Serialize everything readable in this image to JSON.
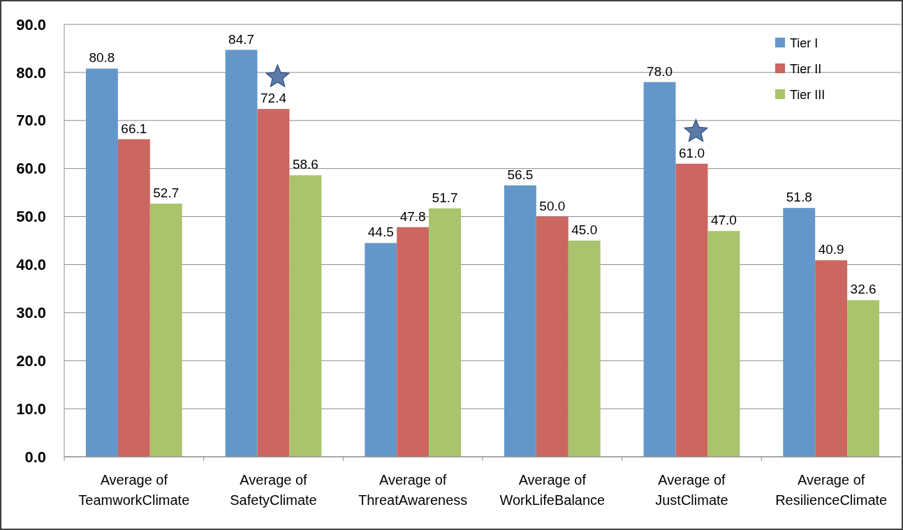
{
  "chart_data": {
    "type": "bar",
    "categories": [
      "Average of\nTeamworkClimate",
      "Average of\nSafetyClimate",
      "Average of\nThreatAwareness",
      "Average of\nWorkLifeBalance",
      "Average of\nJustClimate",
      "Average of\nResilienceClimate"
    ],
    "series": [
      {
        "name": "Tier I",
        "color": "#6497c9",
        "values": [
          80.8,
          84.7,
          44.5,
          56.5,
          78.0,
          51.8
        ],
        "value_labels": [
          "80.8",
          "84.7",
          "44.5",
          "56.5",
          "78.0",
          "51.8"
        ]
      },
      {
        "name": "Tier II",
        "color": "#cc6660",
        "values": [
          66.1,
          72.4,
          47.8,
          50.0,
          61.0,
          40.9
        ],
        "value_labels": [
          "66.1",
          "72.4",
          "47.8",
          "50.0",
          "61.0",
          "40.9"
        ]
      },
      {
        "name": "Tier III",
        "color": "#a9c46c",
        "values": [
          52.7,
          58.6,
          51.7,
          45.0,
          47.0,
          32.6
        ],
        "value_labels": [
          "52.7",
          "58.6",
          "51.7",
          "45.0",
          "47.0",
          "32.6"
        ]
      }
    ],
    "ylim": [
      0,
      90
    ],
    "yticks": [
      {
        "value": 0,
        "label": "0.0"
      },
      {
        "value": 10,
        "label": "10.0"
      },
      {
        "value": 20,
        "label": "20.0"
      },
      {
        "value": 30,
        "label": "30.0"
      },
      {
        "value": 40,
        "label": "40.0"
      },
      {
        "value": 50,
        "label": "50.0"
      },
      {
        "value": 60,
        "label": "60.0"
      },
      {
        "value": 70,
        "label": "70.0"
      },
      {
        "value": 80,
        "label": "80.0"
      },
      {
        "value": 90,
        "label": "90.0"
      }
    ],
    "grid": "y",
    "legend": "top right"
  }
}
